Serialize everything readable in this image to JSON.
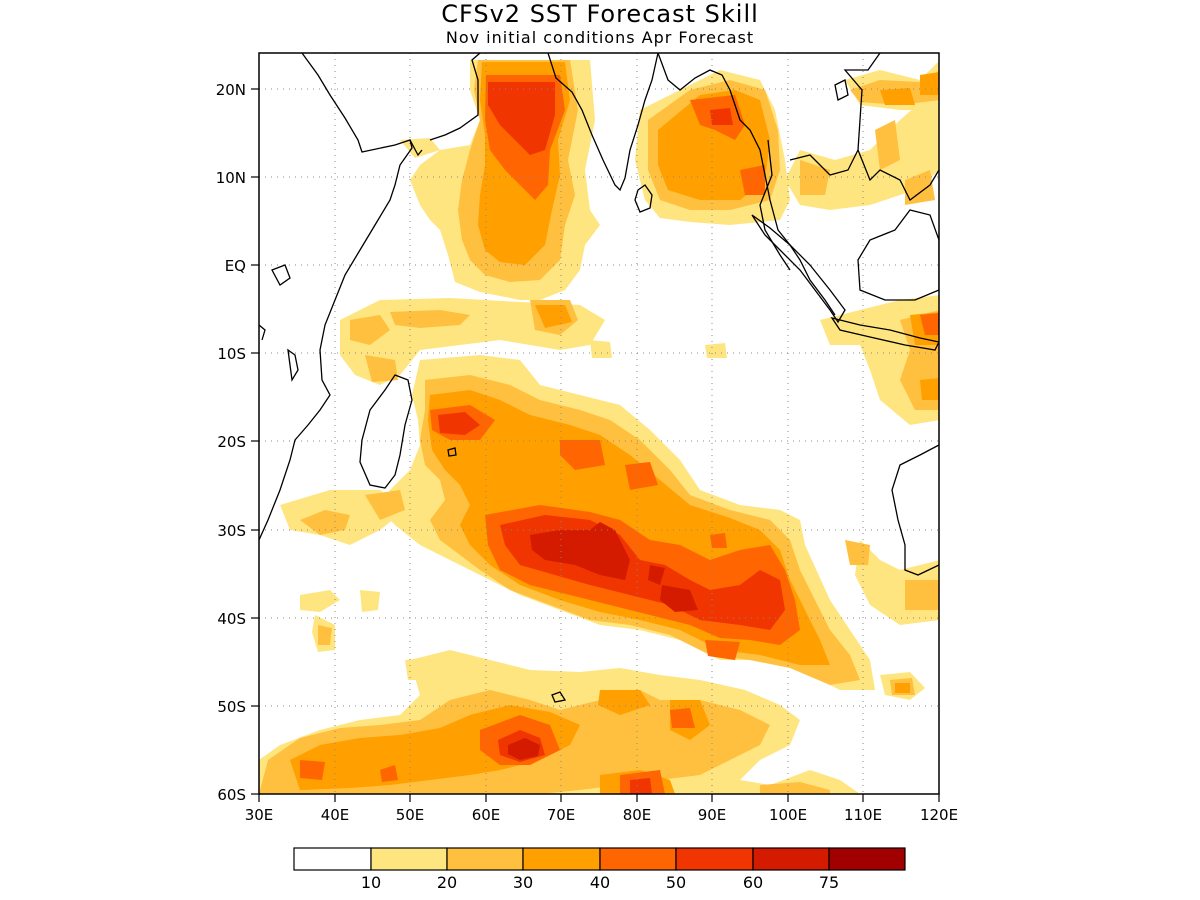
{
  "title": "CFSv2 SST Forecast Skill",
  "subtitle": "Nov initial conditions  Apr Forecast",
  "axes": {
    "x_ticks": [
      "30E",
      "40E",
      "50E",
      "60E",
      "70E",
      "80E",
      "90E",
      "100E",
      "110E",
      "120E"
    ],
    "y_ticks": [
      "20N",
      "10N",
      "EQ",
      "10S",
      "20S",
      "30S",
      "40S",
      "50S",
      "60S"
    ],
    "lon_range": [
      30,
      120
    ],
    "lat_range": [
      -60,
      24
    ],
    "grid": "dotted"
  },
  "colorbar": {
    "colors": [
      "#ffffff",
      "#ffe57f",
      "#ffbf3f",
      "#ff9f00",
      "#ff6500",
      "#f03500",
      "#d41b00",
      "#a00000"
    ],
    "labels": [
      "10",
      "20",
      "30",
      "40",
      "50",
      "60",
      "75"
    ]
  },
  "map_data": {
    "type": "filled-contour",
    "variable": "forecast skill",
    "units": "percent",
    "hotspots": [
      {
        "lon": 63,
        "lat": 17,
        "level": 50
      },
      {
        "lon": 62,
        "lat": 3,
        "level": 30
      },
      {
        "lon": 87,
        "lat": 15,
        "level": 40
      },
      {
        "lon": 60,
        "lat": -17,
        "level": 40
      },
      {
        "lon": 73,
        "lat": -21,
        "level": 40
      },
      {
        "lon": 72,
        "lat": -33,
        "level": 60
      },
      {
        "lon": 82,
        "lat": -37,
        "level": 60
      },
      {
        "lon": 95,
        "lat": -40,
        "level": 50
      },
      {
        "lon": 65,
        "lat": -55,
        "level": 60
      },
      {
        "lon": 37,
        "lat": -57,
        "level": 30
      },
      {
        "lon": 118,
        "lat": -7,
        "level": 40
      }
    ]
  }
}
